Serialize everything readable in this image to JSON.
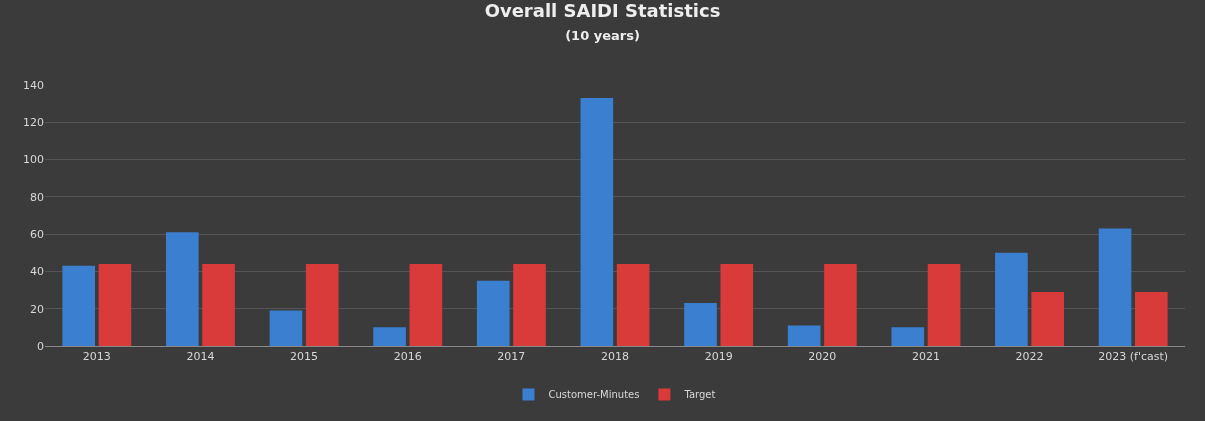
{
  "chart_data": {
    "type": "bar",
    "title": "Overall SAIDI Statistics",
    "subtitle": "(10 years)",
    "categories": [
      "2013",
      "2014",
      "2015",
      "2016",
      "2017",
      "2018",
      "2019",
      "2020",
      "2021",
      "2022",
      "2023 (f'cast)"
    ],
    "series": [
      {
        "name": "Customer-Minutes",
        "color": "#3a7fd0",
        "values": [
          43,
          61,
          19,
          10,
          35,
          133,
          23,
          11,
          10,
          50,
          63
        ]
      },
      {
        "name": "Target",
        "color": "#d93a3a",
        "values": [
          44,
          44,
          44,
          44,
          44,
          44,
          44,
          44,
          44,
          29,
          29
        ]
      }
    ],
    "ylim": [
      0,
      140
    ],
    "yticks": [
      0,
      20,
      40,
      60,
      80,
      100,
      120,
      140
    ],
    "grid": "y",
    "legend": "bottom"
  }
}
